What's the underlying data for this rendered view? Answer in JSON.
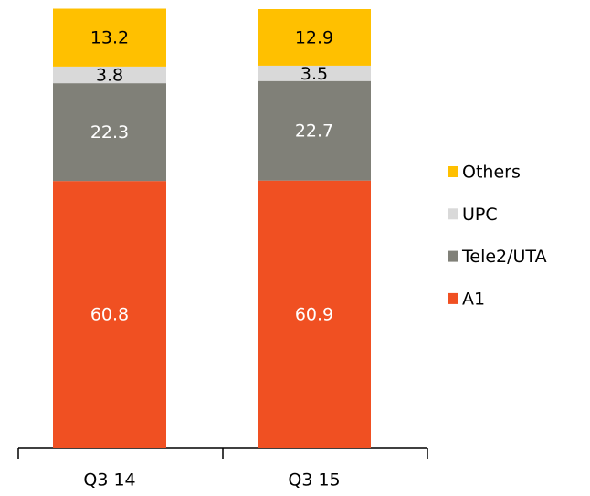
{
  "chart_data": {
    "type": "stacked_bar",
    "categories": [
      "Q3 14",
      "Q3 15"
    ],
    "series": [
      {
        "name": "A1",
        "color": "#f05022",
        "values": [
          60.8,
          60.9
        ]
      },
      {
        "name": "Tele2/UTA",
        "color": "#808078",
        "values": [
          22.3,
          22.7
        ]
      },
      {
        "name": "UPC",
        "color": "#d9d9d9",
        "values": [
          3.8,
          3.5
        ]
      },
      {
        "name": "Others",
        "color": "#ffc000",
        "values": [
          13.2,
          12.9
        ]
      }
    ],
    "ylim": [
      0,
      100
    ],
    "legend": "right"
  }
}
